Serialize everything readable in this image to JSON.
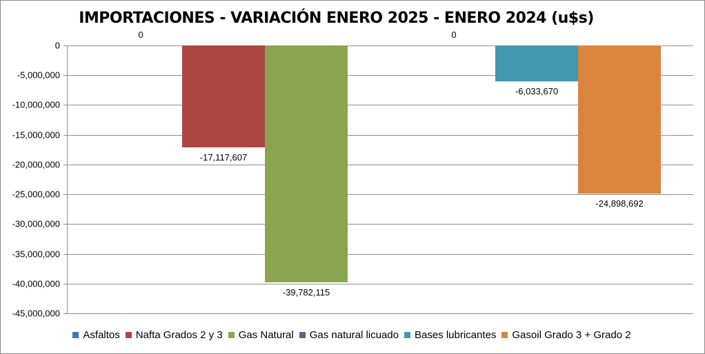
{
  "chart_data": {
    "type": "bar",
    "title": "IMPORTACIONES - VARIACIÓN ENERO 2025 - ENERO 2024 (u$s)",
    "categories": [
      "Asfaltos",
      "Nafta Grados 2 y 3",
      "Gas Natural",
      "Gas natural licuado",
      "Bases lubricantes",
      "Gasoil Grado 3 + Grado 2"
    ],
    "values": [
      0,
      -17117607,
      -39782115,
      0,
      -6033670,
      -24898692
    ],
    "data_labels": [
      "0",
      "-17,117,607",
      "-39,782,115",
      "0",
      "-6,033,670",
      "-24,898,692"
    ],
    "colors": [
      "#4472C4",
      "#AA4643",
      "#89A54E",
      "#71588F",
      "#4198AF",
      "#DB843D"
    ],
    "ylim": [
      -45000000,
      0
    ],
    "yticks": [
      0,
      -5000000,
      -10000000,
      -15000000,
      -20000000,
      -25000000,
      -30000000,
      -35000000,
      -40000000,
      -45000000
    ],
    "ytick_labels": [
      "0",
      "-5,000,000",
      "-10,000,000",
      "-15,000,000",
      "-20,000,000",
      "-25,000,000",
      "-30,000,000",
      "-35,000,000",
      "-40,000,000",
      "-45,000,000"
    ],
    "grid": true,
    "legend_position": "bottom",
    "xlabel": "",
    "ylabel": ""
  }
}
